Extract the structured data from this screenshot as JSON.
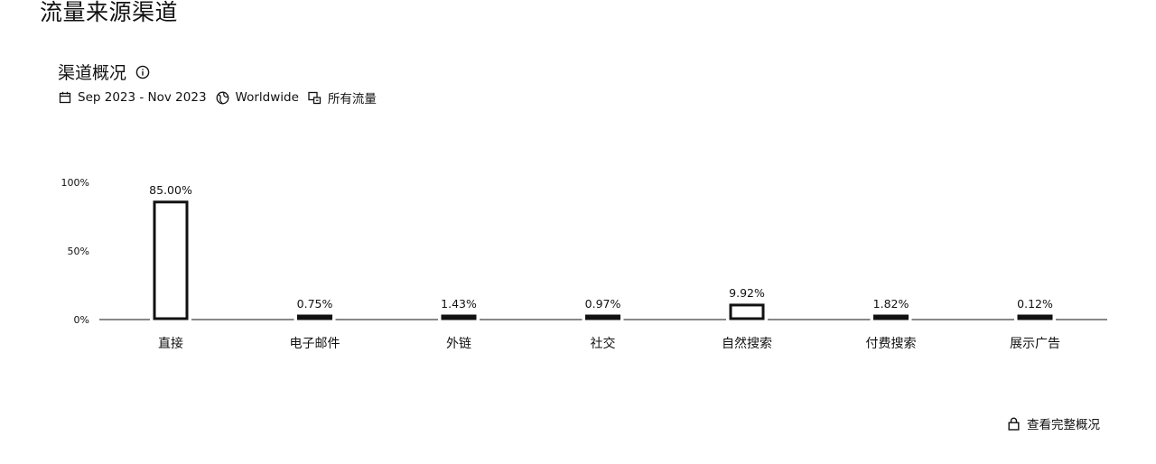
{
  "page": {
    "heading": "流量来源渠道"
  },
  "section": {
    "title": "渠道概况",
    "filters": {
      "date_range": "Sep 2023 - Nov 2023",
      "region": "Worldwide",
      "traffic_type": "所有流量"
    },
    "icons": {
      "info": "info-icon",
      "date": "calendar-icon",
      "region": "globe-icon",
      "traffic": "traffic-type-icon",
      "lock": "lock-icon"
    },
    "view_full_label": "查看完整概况"
  },
  "chart_data": {
    "type": "bar",
    "categories": [
      "直接",
      "电子邮件",
      "外链",
      "社交",
      "自然搜索",
      "付费搜索",
      "展示广告"
    ],
    "values": [
      85.0,
      0.75,
      1.43,
      0.97,
      9.92,
      1.82,
      0.12
    ],
    "value_labels": [
      "85.00%",
      "0.75%",
      "1.43%",
      "0.97%",
      "9.92%",
      "1.82%",
      "0.12%"
    ],
    "y_ticks": [
      0,
      50,
      100
    ],
    "y_tick_labels": [
      "0%",
      "50%",
      "100%"
    ],
    "ylim": [
      0,
      100
    ],
    "title": "",
    "xlabel": "",
    "ylabel": "",
    "grid": false,
    "bar_fill": "#ffffff",
    "bar_stroke": "#111111"
  }
}
